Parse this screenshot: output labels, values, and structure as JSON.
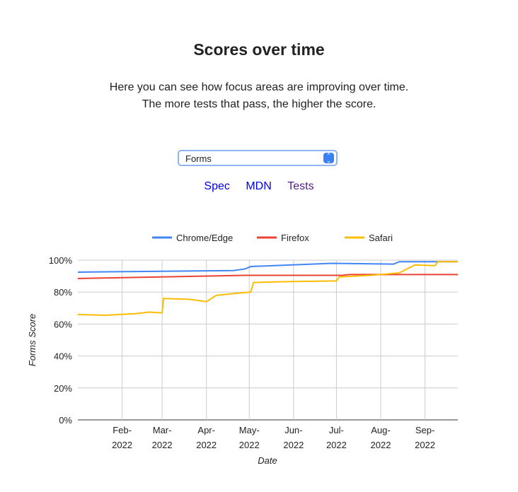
{
  "header": {
    "title": "Scores over time",
    "description": "Here you can see how focus areas are improving over time. The more tests that pass, the higher the score."
  },
  "select": {
    "value": "Forms"
  },
  "links": {
    "spec": "Spec",
    "mdn": "MDN",
    "tests": "Tests"
  },
  "chart_data": {
    "type": "line",
    "xlabel": "Date",
    "ylabel": "Forms Score",
    "ylim": [
      0,
      100
    ],
    "yticks": [
      "0%",
      "20%",
      "40%",
      "60%",
      "80%",
      "100%"
    ],
    "xticks": [
      [
        "Feb-",
        "2022"
      ],
      [
        "Mar-",
        "2022"
      ],
      [
        "Apr-",
        "2022"
      ],
      [
        "May-",
        "2022"
      ],
      [
        "Jun-",
        "2022"
      ],
      [
        "Jul-",
        "2022"
      ],
      [
        "Aug-",
        "2022"
      ],
      [
        "Sep-",
        "2022"
      ]
    ],
    "xtick_dates": [
      "2022-02-01",
      "2022-03-01",
      "2022-04-01",
      "2022-05-01",
      "2022-06-01",
      "2022-07-01",
      "2022-08-01",
      "2022-09-01"
    ],
    "xrange": [
      "2022-01-01",
      "2022-09-24"
    ],
    "legend": "top",
    "grid": true,
    "series": [
      {
        "name": "Chrome/Edge",
        "color": "#4285f4",
        "points": [
          [
            "2022-01-01",
            92.5
          ],
          [
            "2022-04-20",
            93.5
          ],
          [
            "2022-04-28",
            94.5
          ],
          [
            "2022-05-02",
            96
          ],
          [
            "2022-06-28",
            98
          ],
          [
            "2022-08-10",
            97.5
          ],
          [
            "2022-08-14",
            99
          ],
          [
            "2022-09-24",
            99
          ]
        ]
      },
      {
        "name": "Firefox",
        "color": "#ea4335",
        "points": [
          [
            "2022-01-01",
            88.5
          ],
          [
            "2022-04-28",
            90.5
          ],
          [
            "2022-07-05",
            90.5
          ],
          [
            "2022-07-10",
            91
          ],
          [
            "2022-09-24",
            91
          ]
        ]
      },
      {
        "name": "Safari",
        "color": "#fbbc04",
        "points": [
          [
            "2022-01-01",
            66
          ],
          [
            "2022-01-20",
            65.5
          ],
          [
            "2022-02-10",
            66.5
          ],
          [
            "2022-02-20",
            67.5
          ],
          [
            "2022-03-01",
            67
          ],
          [
            "2022-03-02",
            76
          ],
          [
            "2022-03-20",
            75.5
          ],
          [
            "2022-04-01",
            74
          ],
          [
            "2022-04-08",
            78
          ],
          [
            "2022-04-25",
            79.5
          ],
          [
            "2022-05-02",
            80
          ],
          [
            "2022-05-04",
            86
          ],
          [
            "2022-05-25",
            86.5
          ],
          [
            "2022-07-01",
            87
          ],
          [
            "2022-07-03",
            89.5
          ],
          [
            "2022-07-25",
            90.5
          ],
          [
            "2022-08-14",
            92
          ],
          [
            "2022-08-25",
            97
          ],
          [
            "2022-09-08",
            96.5
          ],
          [
            "2022-09-10",
            99
          ],
          [
            "2022-09-24",
            99
          ]
        ]
      }
    ]
  }
}
